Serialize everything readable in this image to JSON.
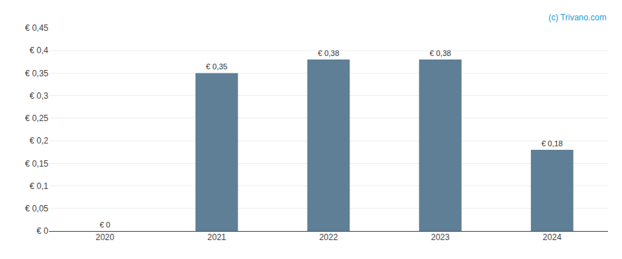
{
  "chart_data": {
    "type": "bar",
    "categories": [
      "2020",
      "2021",
      "2022",
      "2023",
      "2024"
    ],
    "values": [
      0.0,
      0.35,
      0.38,
      0.38,
      0.18
    ],
    "value_labels": [
      "€ 0",
      "€ 0,35",
      "€ 0,38",
      "€ 0,38",
      "€ 0,18"
    ],
    "data_labels": true,
    "color": "#5f7f96",
    "ylim": [
      0,
      0.45
    ],
    "yticks": [
      {
        "value": 0,
        "label": "€ 0"
      },
      {
        "value": 0.05,
        "label": "€ 0,05"
      },
      {
        "value": 0.1,
        "label": "€ 0,1"
      },
      {
        "value": 0.15,
        "label": "€ 0,15"
      },
      {
        "value": 0.2,
        "label": "€ 0,2"
      },
      {
        "value": 0.25,
        "label": "€ 0,25"
      },
      {
        "value": 0.3,
        "label": "€ 0,3"
      },
      {
        "value": 0.35,
        "label": "€ 0,35"
      },
      {
        "value": 0.4,
        "label": "€ 0,4"
      },
      {
        "value": 0.45,
        "label": "€ 0,45"
      }
    ],
    "grid": true,
    "annotations": [
      {
        "text": "(c) Trivano.com",
        "color": "#1a9fdb"
      }
    ]
  }
}
